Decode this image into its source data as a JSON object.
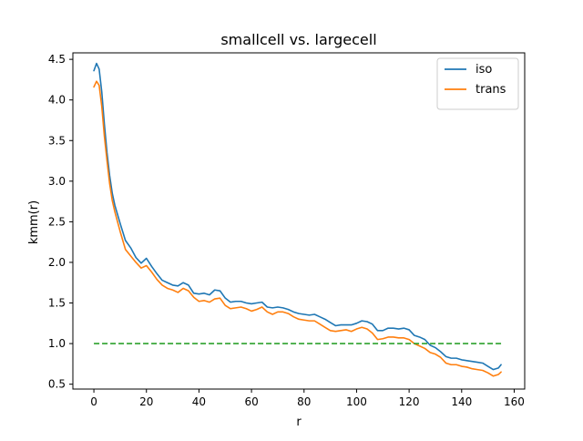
{
  "chart_data": {
    "type": "line",
    "title": "smallcell vs. largecell",
    "xlabel": "r",
    "ylabel": "kmm(r)",
    "xlim": [
      -8,
      164
    ],
    "ylim": [
      0.44,
      4.58
    ],
    "xticks": [
      0,
      20,
      40,
      60,
      80,
      100,
      120,
      140,
      160
    ],
    "yticks": [
      0.5,
      1.0,
      1.5,
      2.0,
      2.5,
      3.0,
      3.5,
      4.0,
      4.5
    ],
    "xtick_labels": [
      "0",
      "20",
      "40",
      "60",
      "80",
      "100",
      "120",
      "140",
      "160"
    ],
    "ytick_labels": [
      "0.5",
      "1.0",
      "1.5",
      "2.0",
      "2.5",
      "3.0",
      "3.5",
      "4.0",
      "4.5"
    ],
    "grid": false,
    "legend_position": "top-right",
    "series": [
      {
        "name": "iso",
        "color": "#1f77b4",
        "dashed": false,
        "x": [
          0,
          1,
          2,
          3,
          4,
          5,
          6,
          7,
          8,
          10,
          12,
          14,
          16,
          18,
          20,
          22,
          24,
          26,
          28,
          30,
          32,
          34,
          36,
          38,
          40,
          42,
          44,
          46,
          48,
          50,
          52,
          54,
          56,
          58,
          60,
          62,
          64,
          66,
          68,
          70,
          72,
          74,
          76,
          78,
          80,
          82,
          84,
          86,
          88,
          90,
          92,
          94,
          96,
          98,
          100,
          102,
          104,
          106,
          108,
          110,
          112,
          114,
          116,
          118,
          120,
          122,
          124,
          126,
          128,
          130,
          132,
          134,
          136,
          138,
          140,
          142,
          144,
          146,
          148,
          150,
          152,
          154,
          155
        ],
        "values": [
          4.36,
          4.45,
          4.38,
          4.1,
          3.7,
          3.35,
          3.07,
          2.85,
          2.7,
          2.48,
          2.27,
          2.18,
          2.06,
          1.99,
          2.05,
          1.95,
          1.86,
          1.78,
          1.75,
          1.72,
          1.71,
          1.75,
          1.72,
          1.62,
          1.61,
          1.62,
          1.6,
          1.66,
          1.65,
          1.56,
          1.51,
          1.52,
          1.52,
          1.5,
          1.49,
          1.5,
          1.51,
          1.45,
          1.44,
          1.45,
          1.44,
          1.42,
          1.39,
          1.37,
          1.36,
          1.35,
          1.36,
          1.33,
          1.3,
          1.26,
          1.22,
          1.23,
          1.23,
          1.23,
          1.25,
          1.28,
          1.27,
          1.24,
          1.16,
          1.16,
          1.19,
          1.19,
          1.18,
          1.19,
          1.17,
          1.1,
          1.08,
          1.05,
          0.98,
          0.95,
          0.9,
          0.84,
          0.82,
          0.82,
          0.8,
          0.79,
          0.78,
          0.77,
          0.76,
          0.72,
          0.68,
          0.7,
          0.74
        ]
      },
      {
        "name": "trans",
        "color": "#ff7f0e",
        "dashed": false,
        "x": [
          0,
          1,
          2,
          3,
          4,
          5,
          6,
          7,
          8,
          10,
          12,
          14,
          16,
          18,
          20,
          22,
          24,
          26,
          28,
          30,
          32,
          34,
          36,
          38,
          40,
          42,
          44,
          46,
          48,
          50,
          52,
          54,
          56,
          58,
          60,
          62,
          64,
          66,
          68,
          70,
          72,
          74,
          76,
          78,
          80,
          82,
          84,
          86,
          88,
          90,
          92,
          94,
          96,
          98,
          100,
          102,
          104,
          106,
          108,
          110,
          112,
          114,
          116,
          118,
          120,
          122,
          124,
          126,
          128,
          130,
          132,
          134,
          136,
          138,
          140,
          142,
          144,
          146,
          148,
          150,
          152,
          154,
          155
        ],
        "values": [
          4.16,
          4.23,
          4.18,
          3.92,
          3.55,
          3.25,
          2.97,
          2.76,
          2.62,
          2.38,
          2.16,
          2.08,
          2.0,
          1.93,
          1.96,
          1.88,
          1.79,
          1.72,
          1.68,
          1.66,
          1.63,
          1.68,
          1.65,
          1.57,
          1.52,
          1.53,
          1.51,
          1.55,
          1.56,
          1.47,
          1.43,
          1.44,
          1.45,
          1.43,
          1.4,
          1.42,
          1.45,
          1.39,
          1.36,
          1.39,
          1.39,
          1.37,
          1.33,
          1.3,
          1.29,
          1.28,
          1.28,
          1.24,
          1.2,
          1.16,
          1.15,
          1.16,
          1.17,
          1.15,
          1.18,
          1.2,
          1.18,
          1.13,
          1.05,
          1.06,
          1.08,
          1.08,
          1.07,
          1.07,
          1.05,
          1.0,
          0.97,
          0.94,
          0.89,
          0.87,
          0.83,
          0.76,
          0.74,
          0.74,
          0.72,
          0.71,
          0.69,
          0.68,
          0.67,
          0.64,
          0.6,
          0.62,
          0.65
        ]
      },
      {
        "name": "",
        "color": "#2ca02c",
        "dashed": true,
        "x": [
          0,
          155
        ],
        "values": [
          1.0,
          1.0
        ]
      }
    ]
  }
}
